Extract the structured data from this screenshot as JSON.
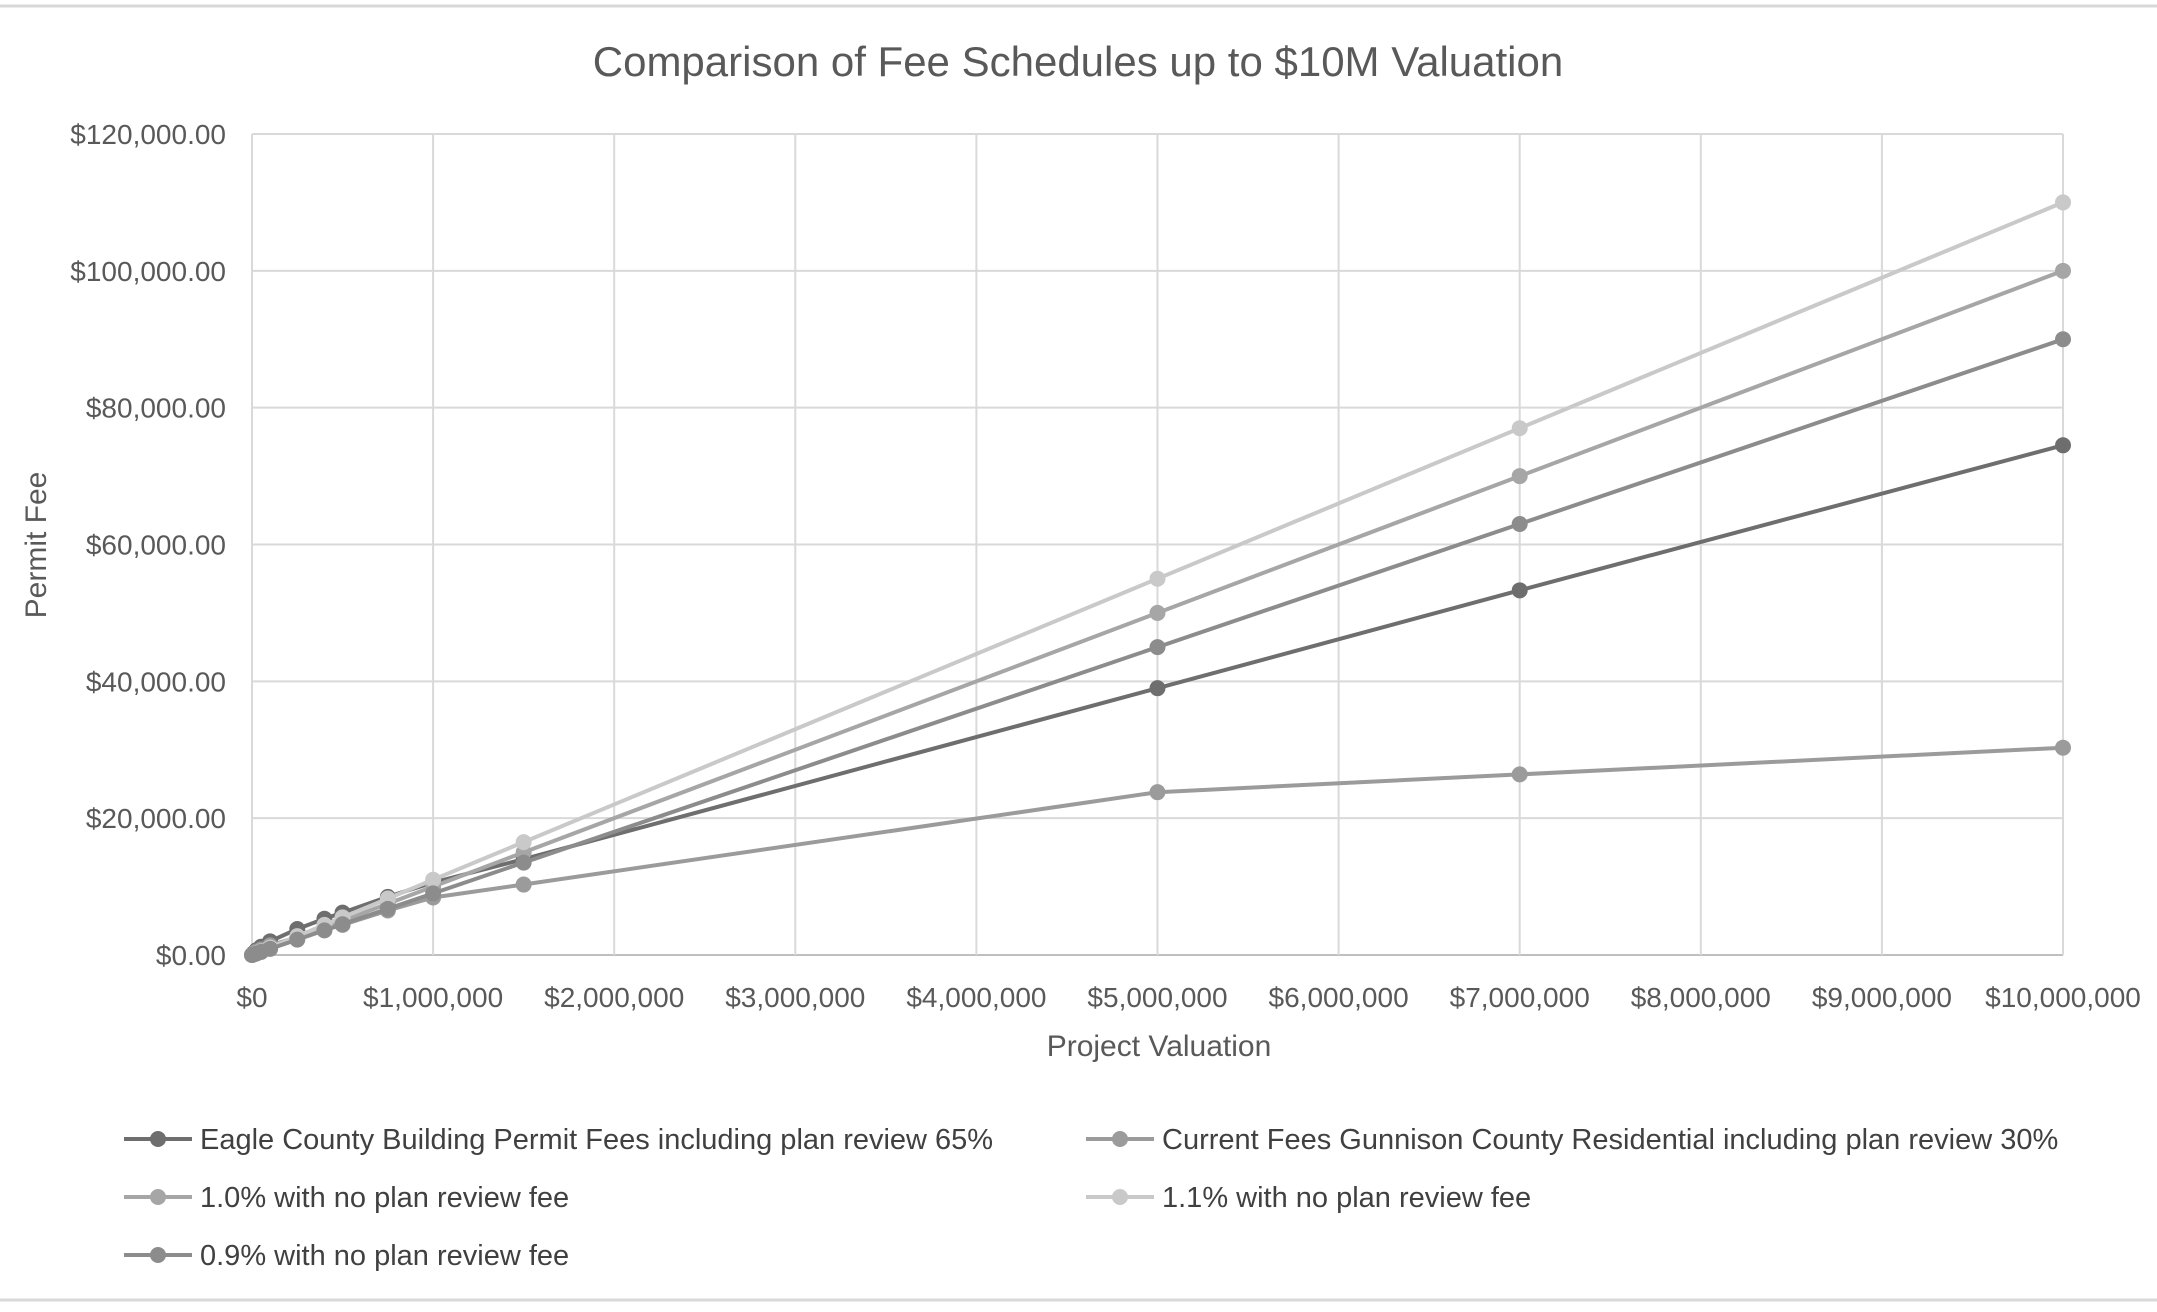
{
  "chart_data": {
    "type": "line",
    "title": "Comparison of Fee Schedules up to $10M Valuation",
    "xlabel": "Project Valuation",
    "ylabel": "Permit Fee",
    "xlim": [
      0,
      10000000
    ],
    "ylim": [
      0,
      120000
    ],
    "grid": true,
    "legend_position": "bottom",
    "x_ticks": [
      {
        "value": 0,
        "label": "$0"
      },
      {
        "value": 1000000,
        "label": "$1,000,000"
      },
      {
        "value": 2000000,
        "label": "$2,000,000"
      },
      {
        "value": 3000000,
        "label": "$3,000,000"
      },
      {
        "value": 4000000,
        "label": "$4,000,000"
      },
      {
        "value": 5000000,
        "label": "$5,000,000"
      },
      {
        "value": 6000000,
        "label": "$6,000,000"
      },
      {
        "value": 7000000,
        "label": "$7,000,000"
      },
      {
        "value": 8000000,
        "label": "$8,000,000"
      },
      {
        "value": 9000000,
        "label": "$9,000,000"
      },
      {
        "value": 10000000,
        "label": "$10,000,000"
      }
    ],
    "y_ticks": [
      {
        "value": 0,
        "label": "$0.00"
      },
      {
        "value": 20000,
        "label": "$20,000.00"
      },
      {
        "value": 40000,
        "label": "$40,000.00"
      },
      {
        "value": 60000,
        "label": "$60,000.00"
      },
      {
        "value": 80000,
        "label": "$80,000.00"
      },
      {
        "value": 100000,
        "label": "$100,000.00"
      },
      {
        "value": 120000,
        "label": "$120,000.00"
      }
    ],
    "series": [
      {
        "name": "Eagle County Building Permit Fees including plan review 65%",
        "color": "#6e6e6e",
        "x": [
          0,
          10000,
          25000,
          50000,
          100000,
          250000,
          400000,
          500000,
          750000,
          1000000,
          1500000,
          5000000,
          7000000,
          10000000
        ],
        "values": [
          0,
          300,
          700,
          1200,
          2000,
          3800,
          5300,
          6200,
          8500,
          10600,
          14000,
          39000,
          53300,
          74500
        ]
      },
      {
        "name": "Current Fees Gunnison County Residential including plan review 30%",
        "color": "#9b9b9b",
        "x": [
          0,
          10000,
          25000,
          50000,
          100000,
          250000,
          400000,
          500000,
          750000,
          1000000,
          1500000,
          5000000,
          7000000,
          10000000
        ],
        "values": [
          0,
          200,
          500,
          800,
          1400,
          2600,
          3700,
          4400,
          6500,
          8400,
          10300,
          23800,
          26400,
          30300
        ]
      },
      {
        "name": "1.0% with no plan review fee",
        "color": "#a6a6a6",
        "x": [
          0,
          10000,
          25000,
          50000,
          100000,
          250000,
          400000,
          500000,
          750000,
          1000000,
          1500000,
          5000000,
          7000000,
          10000000
        ],
        "values": [
          0,
          100,
          250,
          500,
          1000,
          2500,
          4000,
          5000,
          7500,
          10000,
          15000,
          50000,
          70000,
          100000
        ]
      },
      {
        "name": "1.1% with no plan review fee",
        "color": "#c9c9c9",
        "x": [
          0,
          10000,
          25000,
          50000,
          100000,
          250000,
          400000,
          500000,
          750000,
          1000000,
          1500000,
          5000000,
          7000000,
          10000000
        ],
        "values": [
          0,
          110,
          275,
          550,
          1100,
          2750,
          4400,
          5500,
          8250,
          11000,
          16500,
          55000,
          77000,
          110000
        ]
      },
      {
        "name": "0.9% with no plan review fee",
        "color": "#8c8c8c",
        "x": [
          0,
          10000,
          25000,
          50000,
          100000,
          250000,
          400000,
          500000,
          750000,
          1000000,
          1500000,
          5000000,
          7000000,
          10000000
        ],
        "values": [
          0,
          90,
          225,
          450,
          900,
          2250,
          3600,
          4500,
          6750,
          9000,
          13500,
          45000,
          63000,
          90000
        ]
      }
    ]
  }
}
